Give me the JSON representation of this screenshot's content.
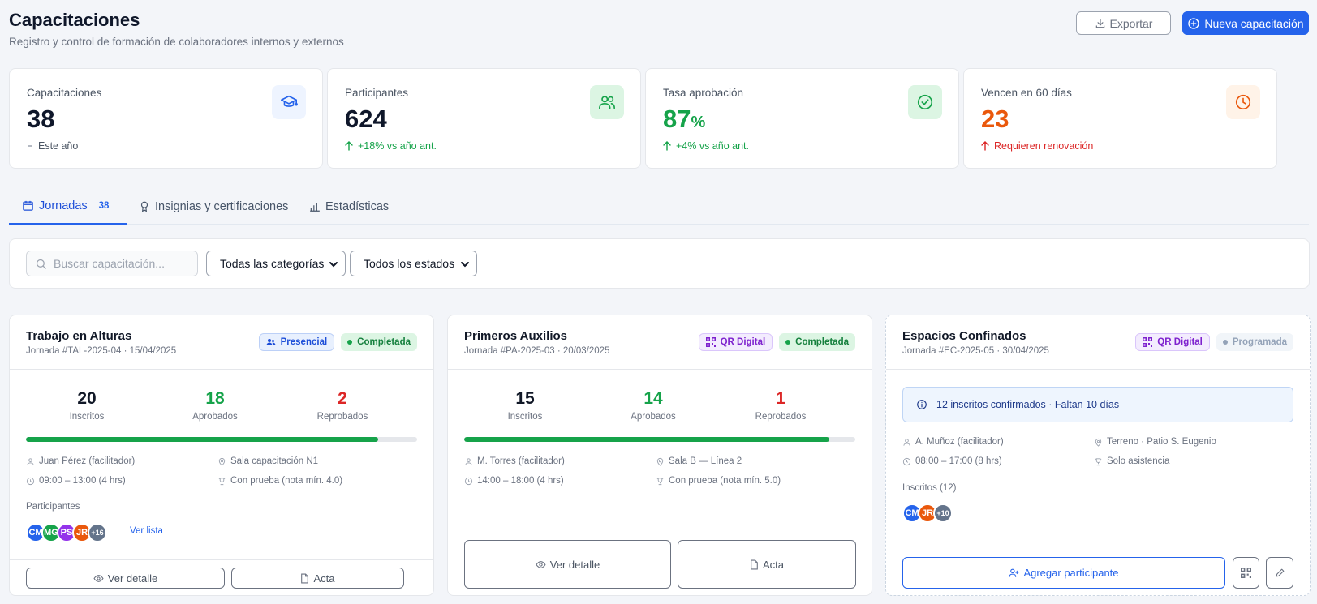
{
  "header": {
    "title": "Capacitaciones",
    "subtitle": "Registro y control de formación de colaboradores internos y externos",
    "export_label": "Exportar",
    "new_label": "Nueva capacitación"
  },
  "kpis": [
    {
      "label": "Capacitaciones",
      "value": "38",
      "delta": "Este año",
      "delta_color": "#4b5563",
      "value_color": "#0f172a",
      "icon": "graduation-cap-icon",
      "icon_bg": "#eef4ff"
    },
    {
      "label": "Participantes",
      "value": "624",
      "delta": "+18% vs año ant.",
      "delta_color": "#16a34a",
      "value_color": "#0f172a",
      "icon": "users-icon",
      "icon_bg": "#dcf5e3"
    },
    {
      "label": "Tasa aprobación",
      "value": "87",
      "unit": "%",
      "delta": "+4% vs año ant.",
      "delta_color": "#16a34a",
      "value_color": "#16a34a",
      "icon": "check-circle-icon",
      "icon_bg": "#dcf5e3"
    },
    {
      "label": "Vencen en 60 días",
      "value": "23",
      "delta": "Requieren renovación",
      "delta_color": "#dc2626",
      "value_color": "#ea580c",
      "icon": "clock-icon",
      "icon_bg": "#fff3e8"
    }
  ],
  "tabs": [
    {
      "label": "Jornadas",
      "count": "38"
    },
    {
      "label": "Insignias y certificaciones"
    },
    {
      "label": "Estadísticas"
    }
  ],
  "filters": {
    "search_placeholder": "Buscar capacitación...",
    "category": "Todas las categorías",
    "status": "Todos los estados"
  },
  "cards": [
    {
      "title": "Trabajo en Alturas",
      "subtitle": "Jornada #TAL-2025-04 · 15/04/2025",
      "mode": "Presencial",
      "status": "Completada",
      "stats": [
        {
          "value": "20",
          "label": "Inscritos"
        },
        {
          "value": "18",
          "label": "Aprobados"
        },
        {
          "value": "2",
          "label": "Reprobados"
        }
      ],
      "progress": 0.9,
      "facilitator": "Juan Pérez (facilitador)",
      "place": "Sala capacitación N1",
      "time": "09:00 – 13:00 (4 hrs)",
      "evaluation": "Con prueba (nota mín. 4.0)",
      "participants_label": "Participantes",
      "avatars": [
        {
          "initials": "CM",
          "color": "#2563eb"
        },
        {
          "initials": "MG",
          "color": "#16a34a"
        },
        {
          "initials": "PS",
          "color": "#9333ea"
        },
        {
          "initials": "JR",
          "color": "#ea580c"
        },
        {
          "initials": "+16",
          "color": "#64748b"
        }
      ],
      "list_link": "Ver lista",
      "detail_label": "Ver detalle",
      "acta_label": "Acta"
    },
    {
      "title": "Primeros Auxilios",
      "subtitle": "Jornada #PA-2025-03 · 20/03/2025",
      "mode": "QR Digital",
      "status": "Completada",
      "stats": [
        {
          "value": "15",
          "label": "Inscritos"
        },
        {
          "value": "14",
          "label": "Aprobados"
        },
        {
          "value": "1",
          "label": "Reprobados"
        }
      ],
      "progress": 0.933,
      "facilitator": "M. Torres (facilitador)",
      "place": "Sala B — Línea 2",
      "time": "14:00 – 18:00 (4 hrs)",
      "evaluation": "Con prueba (nota mín. 5.0)",
      "detail_label": "Ver detalle",
      "acta_label": "Acta"
    },
    {
      "title": "Espacios Confinados",
      "subtitle": "Jornada #EC-2025-05 · 30/04/2025",
      "mode": "QR Digital",
      "status": "Programada",
      "info": "12 inscritos confirmados · Faltan 10 días",
      "facilitator": "A. Muñoz (facilitador)",
      "place": "Terreno · Patio S. Eugenio",
      "time": "08:00 – 17:00 (8 hrs)",
      "evaluation": "Solo asistencia",
      "enrolled_label": "Inscritos (12)",
      "avatars": [
        {
          "initials": "CM",
          "color": "#2563eb"
        },
        {
          "initials": "JR",
          "color": "#ea580c"
        },
        {
          "initials": "+10",
          "color": "#64748b"
        }
      ],
      "add_label": "Agregar participante"
    }
  ],
  "colors": {
    "accent": "#2563eb",
    "success": "#16a34a",
    "danger": "#dc2626",
    "warning": "#ea580c"
  }
}
